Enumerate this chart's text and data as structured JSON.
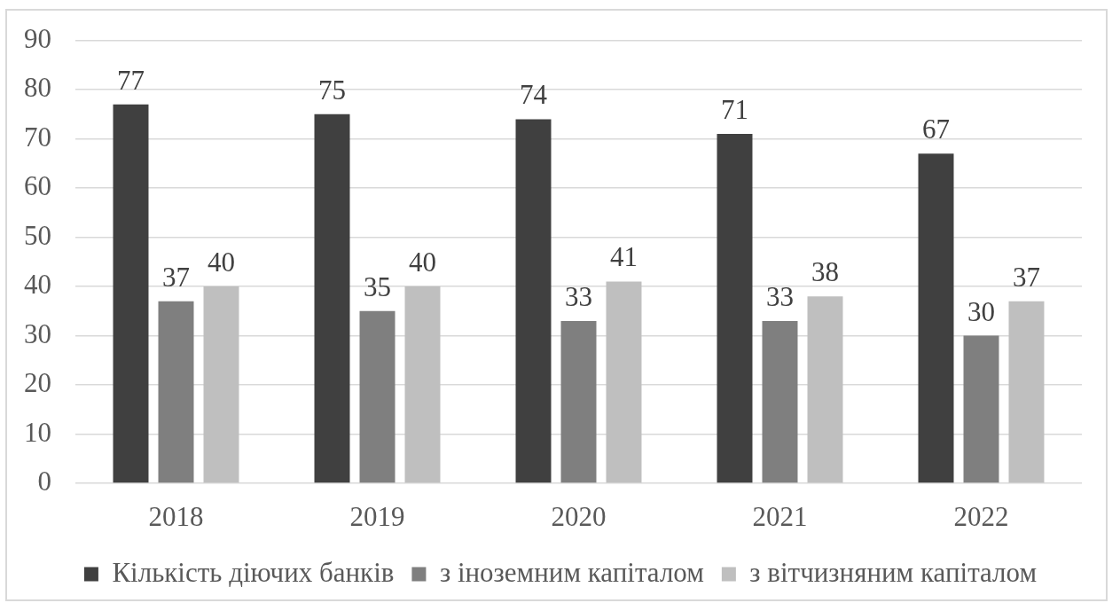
{
  "chart_data": {
    "type": "bar",
    "categories": [
      "2018",
      "2019",
      "2020",
      "2021",
      "2022"
    ],
    "series": [
      {
        "name": "Кількість діючих банків",
        "color": "#404040",
        "values": [
          77,
          75,
          74,
          71,
          67
        ]
      },
      {
        "name": "з іноземним капіталом",
        "color": "#7f7f7f",
        "values": [
          37,
          35,
          33,
          33,
          30
        ]
      },
      {
        "name": "з вітчизняним капіталом",
        "color": "#bfbfbf",
        "values": [
          40,
          40,
          41,
          38,
          37
        ]
      }
    ],
    "ylim": [
      0,
      90
    ],
    "yticks": [
      0,
      10,
      20,
      30,
      40,
      50,
      60,
      70,
      80,
      90
    ],
    "grid": "y",
    "legend": "bottom",
    "data_labels": true
  }
}
